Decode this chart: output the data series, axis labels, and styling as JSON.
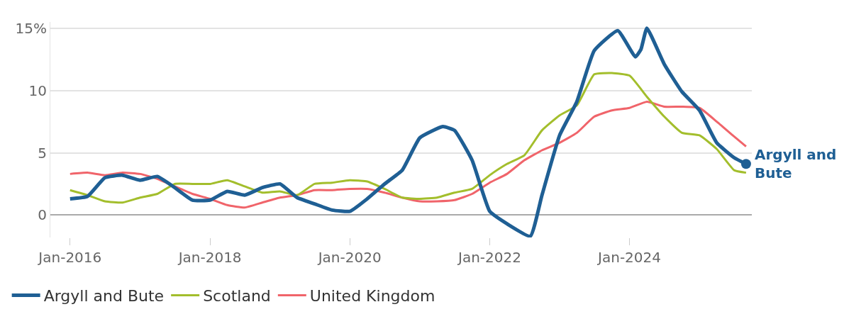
{
  "chart_data": {
    "type": "line",
    "x": [
      "2016-01",
      "2016-04",
      "2016-07",
      "2016-10",
      "2017-01",
      "2017-04",
      "2017-07",
      "2017-10",
      "2018-01",
      "2018-04",
      "2018-07",
      "2018-10",
      "2019-01",
      "2019-04",
      "2019-07",
      "2019-10",
      "2020-01",
      "2020-04",
      "2020-07",
      "2020-10",
      "2021-01",
      "2021-04",
      "2021-07",
      "2021-10",
      "2022-01",
      "2022-04",
      "2022-07",
      "2022-10",
      "2023-01",
      "2023-04",
      "2023-07",
      "2023-10",
      "2024-01",
      "2024-04",
      "2024-07",
      "2024-10",
      "2025-01",
      "2025-04",
      "2025-07",
      "2025-09"
    ],
    "series": [
      {
        "name": "Argyll and Bute",
        "color": "#1f5f94",
        "x": [
          "2016-01",
          "2016-04",
          "2016-07",
          "2016-10",
          "2017-01",
          "2017-04",
          "2017-07",
          "2017-10",
          "2018-01",
          "2018-04",
          "2018-07",
          "2018-10",
          "2019-01",
          "2019-04",
          "2019-07",
          "2019-10",
          "2020-01",
          "2020-04",
          "2020-07",
          "2020-10",
          "2021-01",
          "2021-05",
          "2021-07",
          "2021-10",
          "2022-01",
          "2022-04",
          "2022-08",
          "2022-10",
          "2023-01",
          "2023-04",
          "2023-07",
          "2023-11",
          "2024-02",
          "2024-03",
          "2024-04",
          "2024-07",
          "2024-10",
          "2025-01",
          "2025-04",
          "2025-07",
          "2025-09"
        ],
        "values": [
          1.3,
          1.5,
          3.0,
          3.2,
          2.8,
          3.1,
          2.2,
          1.2,
          1.2,
          1.9,
          1.6,
          2.2,
          2.5,
          1.4,
          0.9,
          0.4,
          0.3,
          1.3,
          2.5,
          3.6,
          6.2,
          7.1,
          6.8,
          4.4,
          0.3,
          -0.7,
          -1.7,
          1.6,
          6.4,
          9.1,
          13.2,
          14.8,
          12.7,
          13.3,
          15.0,
          12.1,
          9.9,
          8.4,
          5.8,
          4.6,
          4.1
        ]
      },
      {
        "name": "Scotland",
        "color": "#a3be2c",
        "values": [
          2.0,
          1.6,
          1.1,
          1.0,
          1.4,
          1.7,
          2.5,
          2.5,
          2.5,
          2.8,
          2.3,
          1.8,
          1.9,
          1.6,
          2.5,
          2.6,
          2.8,
          2.7,
          2.1,
          1.4,
          1.3,
          1.4,
          1.8,
          2.1,
          3.2,
          4.1,
          4.8,
          6.8,
          8.0,
          8.8,
          11.3,
          11.4,
          11.2,
          9.5,
          7.9,
          6.6,
          6.4,
          5.3,
          3.6,
          3.4
        ]
      },
      {
        "name": "United Kingdom",
        "color": "#f0646a",
        "values": [
          3.3,
          3.4,
          3.2,
          3.4,
          3.3,
          2.9,
          2.3,
          1.7,
          1.3,
          0.8,
          0.6,
          1.0,
          1.4,
          1.6,
          2.0,
          2.0,
          2.1,
          2.1,
          1.8,
          1.4,
          1.1,
          1.1,
          1.2,
          1.7,
          2.6,
          3.3,
          4.4,
          5.2,
          5.8,
          6.6,
          7.9,
          8.4,
          8.6,
          9.1,
          8.7,
          8.7,
          8.6,
          7.5,
          6.3,
          5.5
        ]
      }
    ],
    "xlim": [
      "2015-09-20",
      "2025-10-01"
    ],
    "xticks": [
      {
        "value": "2016-01",
        "label": "Jan-2016"
      },
      {
        "value": "2018-01",
        "label": "Jan-2018"
      },
      {
        "value": "2020-01",
        "label": "Jan-2020"
      },
      {
        "value": "2022-01",
        "label": "Jan-2022"
      },
      {
        "value": "2024-01",
        "label": "Jan-2024"
      }
    ],
    "ylim": [
      -1.8,
      15.5
    ],
    "yticks": [
      0,
      5,
      10,
      {
        "value": 15,
        "label": "15%"
      }
    ],
    "annotations": [
      {
        "text": "Argyll and Bute",
        "x": "2025-09",
        "y": 4.1
      }
    ],
    "grid": "y",
    "legend": "bottom left",
    "line_style": "solid"
  }
}
